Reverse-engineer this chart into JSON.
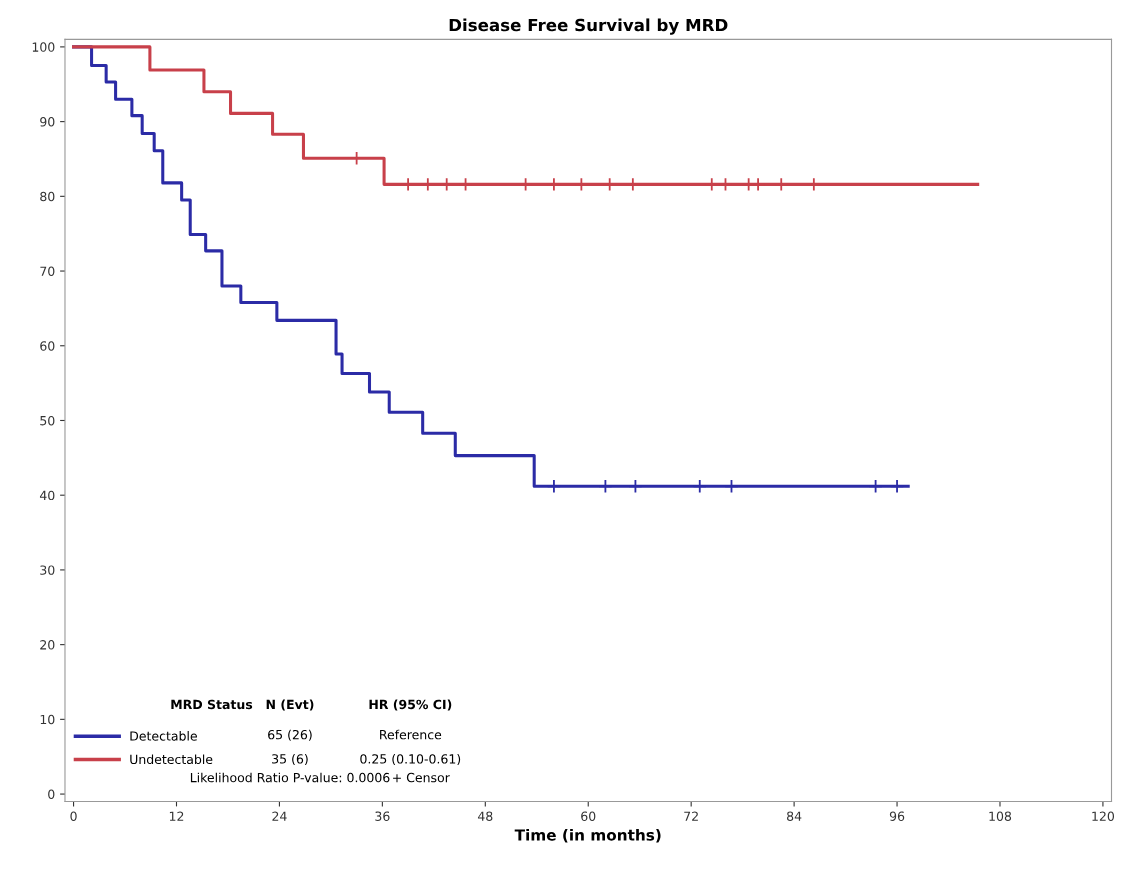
{
  "chart_data": {
    "type": "step",
    "title": "Disease Free Survival by MRD",
    "xlabel": "Time (in months)",
    "xlim": [
      -1,
      121
    ],
    "xticks": [
      0,
      12,
      24,
      36,
      48,
      60,
      72,
      84,
      96,
      108,
      120
    ],
    "ylim": [
      -1,
      101
    ],
    "yticks": [
      0,
      10,
      20,
      30,
      40,
      50,
      60,
      70,
      80,
      90,
      100
    ],
    "grid": false,
    "legend": "bottom left",
    "series": [
      {
        "name": "Detectable",
        "color": "#2b2ba6",
        "x": [
          0,
          2.1,
          3.8,
          4.9,
          6.8,
          8.0,
          9.4,
          10.4,
          12.6,
          13.6,
          15.4,
          17.3,
          19.5,
          23.7,
          30.6,
          31.3,
          34.5,
          36.8,
          40.7,
          44.5,
          53.7,
          97.3
        ],
        "values": [
          100,
          97.5,
          95.3,
          93.0,
          90.8,
          88.4,
          86.1,
          81.8,
          79.5,
          74.9,
          72.7,
          68.0,
          65.8,
          63.4,
          58.9,
          56.3,
          53.8,
          51.1,
          48.3,
          45.3,
          41.2,
          41.2
        ]
      },
      {
        "name": "Undetectable",
        "color": "#c8404a",
        "x": [
          0,
          8.9,
          15.2,
          18.3,
          23.2,
          26.8,
          36.2,
          105.4
        ],
        "values": [
          100,
          96.9,
          94.0,
          91.1,
          88.3,
          85.1,
          81.6,
          81.6
        ]
      },
      {
        "type": "scatter",
        "marker": "cross",
        "color": "#2b2ba6",
        "x": [
          56.0,
          62.0,
          65.5,
          73.0,
          76.7,
          93.5,
          96.0
        ],
        "values": [
          41.2,
          41.2,
          41.2,
          41.2,
          41.2,
          41.2,
          41.2
        ]
      },
      {
        "type": "scatter",
        "marker": "cross",
        "color": "#c8404a",
        "x": [
          33.0,
          39.0,
          41.3,
          43.5,
          45.7,
          52.7,
          56.0,
          59.2,
          62.5,
          65.2,
          74.4,
          76.0,
          78.7,
          79.8,
          82.5,
          86.3
        ],
        "values": [
          85.1,
          81.6,
          81.6,
          81.6,
          81.6,
          81.6,
          81.6,
          81.6,
          81.6,
          81.6,
          81.6,
          81.6,
          81.6,
          81.6,
          81.6,
          81.6
        ]
      }
    ],
    "annotations": [
      "MRD Status",
      "N (Evt)",
      "HR (95% CI)",
      "65 (26)",
      "Reference",
      "35 (6)",
      "0.25 (0.10-0.61)",
      "Likelihood Ratio P-value: 0.0006",
      "+ Censor"
    ]
  }
}
